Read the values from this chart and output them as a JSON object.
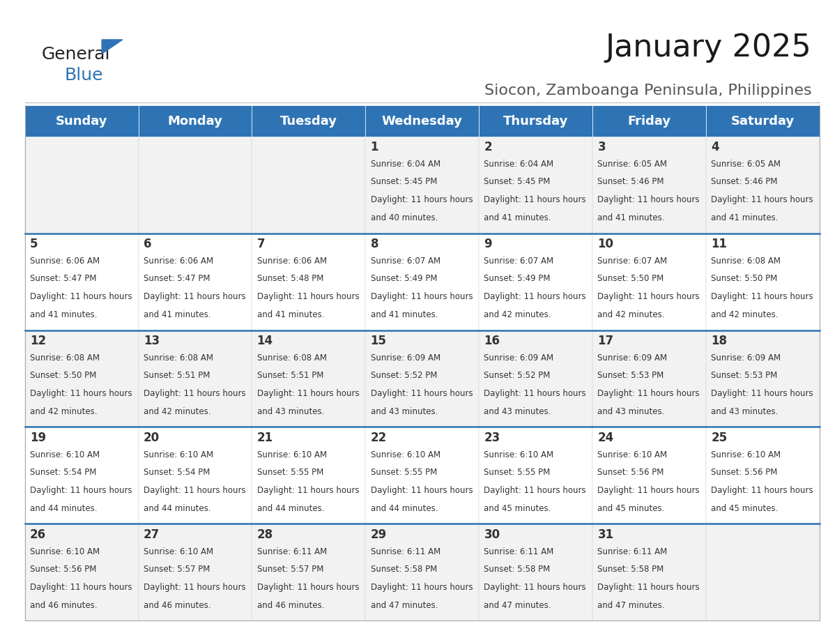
{
  "title": "January 2025",
  "subtitle": "Siocon, Zamboanga Peninsula, Philippines",
  "header_bg": "#2E74B5",
  "header_text_color": "#FFFFFF",
  "cell_bg_odd": "#F2F2F2",
  "cell_bg_even": "#FFFFFF",
  "row_line_color": "#2E74B5",
  "days_of_week": [
    "Sunday",
    "Monday",
    "Tuesday",
    "Wednesday",
    "Thursday",
    "Friday",
    "Saturday"
  ],
  "calendar_data": [
    [
      {
        "day": "",
        "sunrise": "",
        "sunset": "",
        "daylight": ""
      },
      {
        "day": "",
        "sunrise": "",
        "sunset": "",
        "daylight": ""
      },
      {
        "day": "",
        "sunrise": "",
        "sunset": "",
        "daylight": ""
      },
      {
        "day": "1",
        "sunrise": "6:04 AM",
        "sunset": "5:45 PM",
        "daylight": "11 hours and 40 minutes."
      },
      {
        "day": "2",
        "sunrise": "6:04 AM",
        "sunset": "5:45 PM",
        "daylight": "11 hours and 41 minutes."
      },
      {
        "day": "3",
        "sunrise": "6:05 AM",
        "sunset": "5:46 PM",
        "daylight": "11 hours and 41 minutes."
      },
      {
        "day": "4",
        "sunrise": "6:05 AM",
        "sunset": "5:46 PM",
        "daylight": "11 hours and 41 minutes."
      }
    ],
    [
      {
        "day": "5",
        "sunrise": "6:06 AM",
        "sunset": "5:47 PM",
        "daylight": "11 hours and 41 minutes."
      },
      {
        "day": "6",
        "sunrise": "6:06 AM",
        "sunset": "5:47 PM",
        "daylight": "11 hours and 41 minutes."
      },
      {
        "day": "7",
        "sunrise": "6:06 AM",
        "sunset": "5:48 PM",
        "daylight": "11 hours and 41 minutes."
      },
      {
        "day": "8",
        "sunrise": "6:07 AM",
        "sunset": "5:49 PM",
        "daylight": "11 hours and 41 minutes."
      },
      {
        "day": "9",
        "sunrise": "6:07 AM",
        "sunset": "5:49 PM",
        "daylight": "11 hours and 42 minutes."
      },
      {
        "day": "10",
        "sunrise": "6:07 AM",
        "sunset": "5:50 PM",
        "daylight": "11 hours and 42 minutes."
      },
      {
        "day": "11",
        "sunrise": "6:08 AM",
        "sunset": "5:50 PM",
        "daylight": "11 hours and 42 minutes."
      }
    ],
    [
      {
        "day": "12",
        "sunrise": "6:08 AM",
        "sunset": "5:50 PM",
        "daylight": "11 hours and 42 minutes."
      },
      {
        "day": "13",
        "sunrise": "6:08 AM",
        "sunset": "5:51 PM",
        "daylight": "11 hours and 42 minutes."
      },
      {
        "day": "14",
        "sunrise": "6:08 AM",
        "sunset": "5:51 PM",
        "daylight": "11 hours and 43 minutes."
      },
      {
        "day": "15",
        "sunrise": "6:09 AM",
        "sunset": "5:52 PM",
        "daylight": "11 hours and 43 minutes."
      },
      {
        "day": "16",
        "sunrise": "6:09 AM",
        "sunset": "5:52 PM",
        "daylight": "11 hours and 43 minutes."
      },
      {
        "day": "17",
        "sunrise": "6:09 AM",
        "sunset": "5:53 PM",
        "daylight": "11 hours and 43 minutes."
      },
      {
        "day": "18",
        "sunrise": "6:09 AM",
        "sunset": "5:53 PM",
        "daylight": "11 hours and 43 minutes."
      }
    ],
    [
      {
        "day": "19",
        "sunrise": "6:10 AM",
        "sunset": "5:54 PM",
        "daylight": "11 hours and 44 minutes."
      },
      {
        "day": "20",
        "sunrise": "6:10 AM",
        "sunset": "5:54 PM",
        "daylight": "11 hours and 44 minutes."
      },
      {
        "day": "21",
        "sunrise": "6:10 AM",
        "sunset": "5:55 PM",
        "daylight": "11 hours and 44 minutes."
      },
      {
        "day": "22",
        "sunrise": "6:10 AM",
        "sunset": "5:55 PM",
        "daylight": "11 hours and 44 minutes."
      },
      {
        "day": "23",
        "sunrise": "6:10 AM",
        "sunset": "5:55 PM",
        "daylight": "11 hours and 45 minutes."
      },
      {
        "day": "24",
        "sunrise": "6:10 AM",
        "sunset": "5:56 PM",
        "daylight": "11 hours and 45 minutes."
      },
      {
        "day": "25",
        "sunrise": "6:10 AM",
        "sunset": "5:56 PM",
        "daylight": "11 hours and 45 minutes."
      }
    ],
    [
      {
        "day": "26",
        "sunrise": "6:10 AM",
        "sunset": "5:56 PM",
        "daylight": "11 hours and 46 minutes."
      },
      {
        "day": "27",
        "sunrise": "6:10 AM",
        "sunset": "5:57 PM",
        "daylight": "11 hours and 46 minutes."
      },
      {
        "day": "28",
        "sunrise": "6:11 AM",
        "sunset": "5:57 PM",
        "daylight": "11 hours and 46 minutes."
      },
      {
        "day": "29",
        "sunrise": "6:11 AM",
        "sunset": "5:58 PM",
        "daylight": "11 hours and 47 minutes."
      },
      {
        "day": "30",
        "sunrise": "6:11 AM",
        "sunset": "5:58 PM",
        "daylight": "11 hours and 47 minutes."
      },
      {
        "day": "31",
        "sunrise": "6:11 AM",
        "sunset": "5:58 PM",
        "daylight": "11 hours and 47 minutes."
      },
      {
        "day": "",
        "sunrise": "",
        "sunset": "",
        "daylight": ""
      }
    ]
  ],
  "logo_text_general": "General",
  "logo_text_blue": "Blue",
  "logo_color_general": "#222222",
  "logo_color_blue": "#2E74B5",
  "title_fontsize": 32,
  "subtitle_fontsize": 16,
  "header_fontsize": 13,
  "day_num_fontsize": 12,
  "cell_text_fontsize": 8.5
}
